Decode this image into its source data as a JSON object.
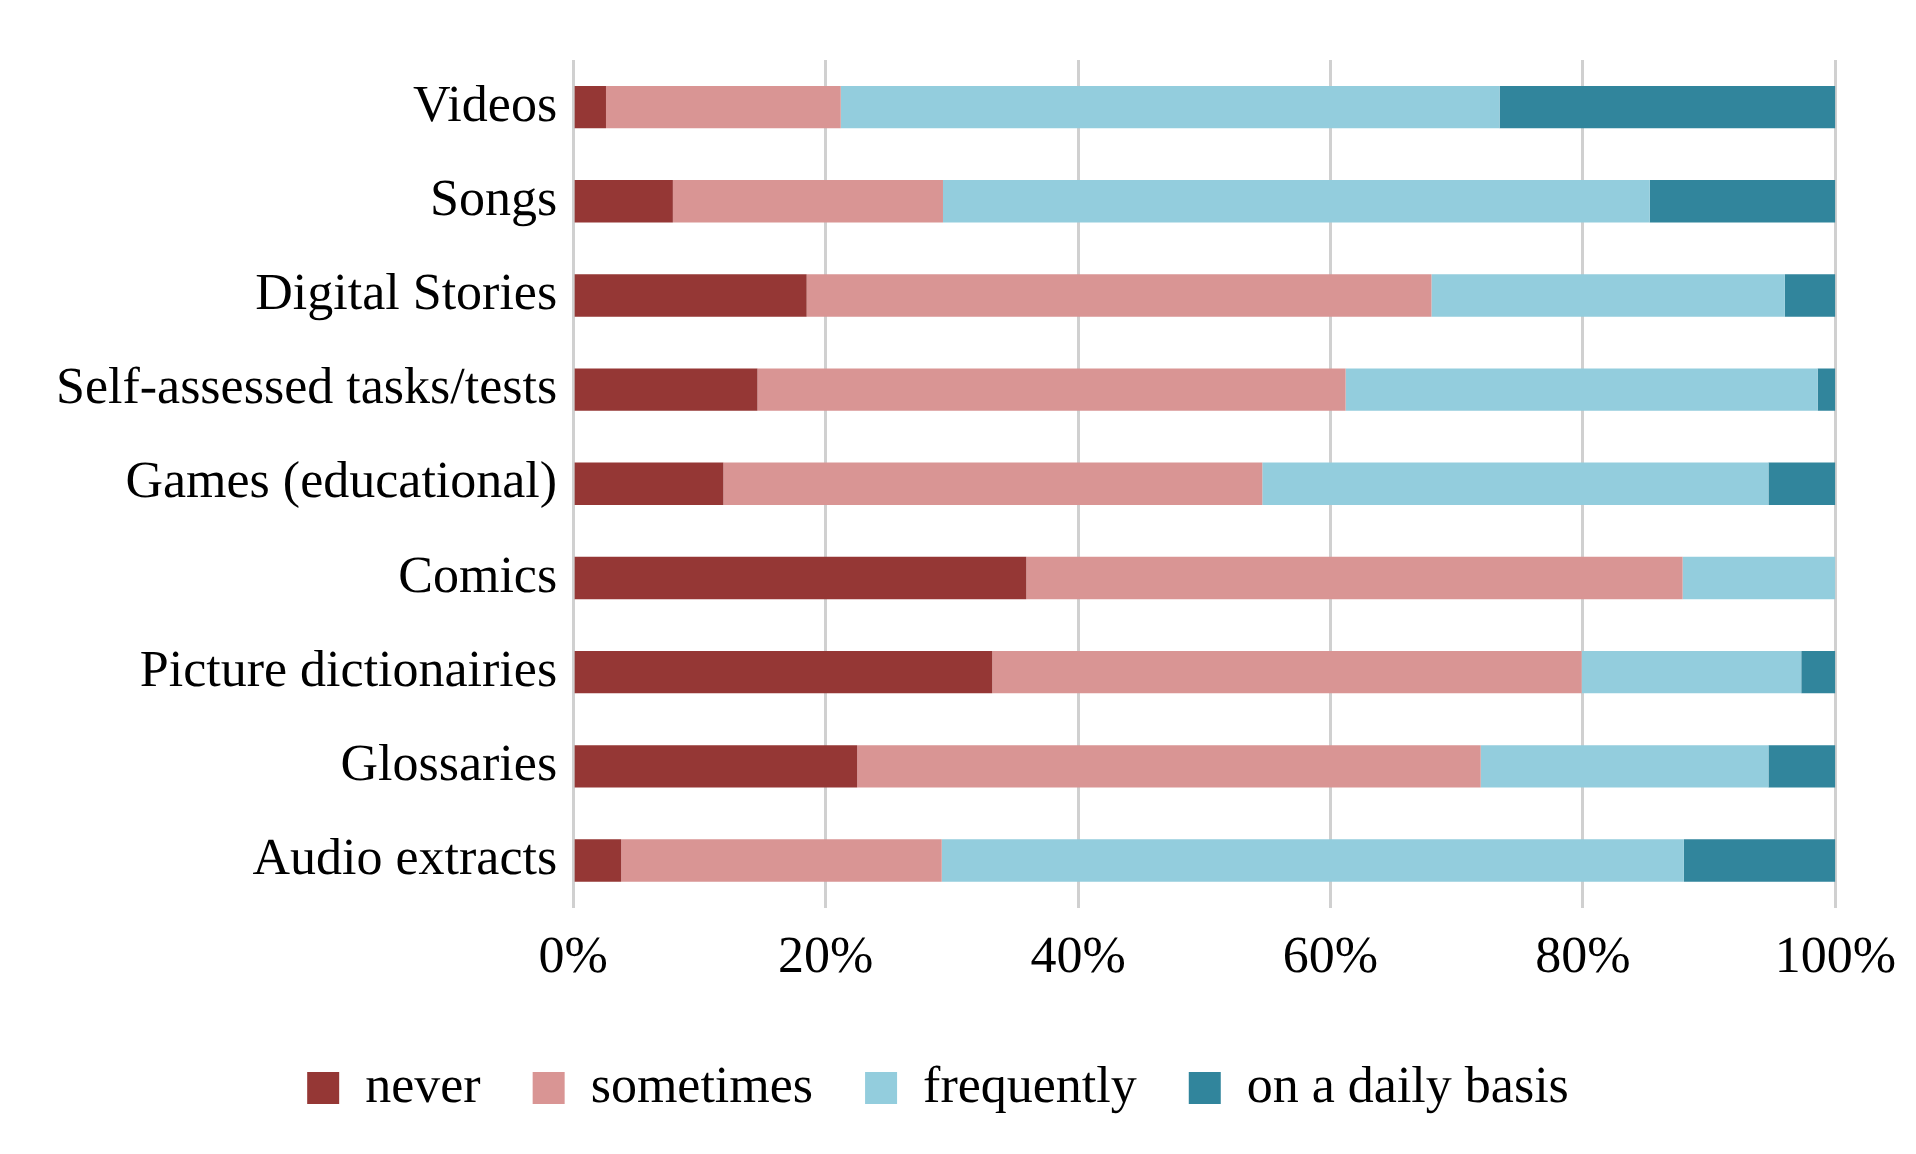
{
  "chart_data": {
    "type": "bar",
    "orientation": "horizontal",
    "stacked": true,
    "categories": [
      "Videos",
      "Songs",
      "Digital Stories",
      "Self-assessed tasks/tests",
      "Games (educational)",
      "Comics",
      "Picture dictionairies",
      "Glossaries",
      "Audio extracts"
    ],
    "series": [
      {
        "name": "never",
        "color": "#953735",
        "values": [
          2.6,
          7.9,
          18.5,
          14.6,
          11.9,
          35.9,
          33.2,
          22.5,
          3.8
        ]
      },
      {
        "name": "sometimes",
        "color": "#d99594",
        "values": [
          18.6,
          21.4,
          49.5,
          46.6,
          42.7,
          52.0,
          46.7,
          49.4,
          25.4
        ]
      },
      {
        "name": "frequently",
        "color": "#93cddd",
        "values": [
          52.2,
          56.0,
          28.0,
          37.4,
          40.1,
          12.1,
          17.4,
          22.8,
          58.8
        ]
      },
      {
        "name": "on a daily basis",
        "color": "#31859c",
        "values": [
          26.6,
          14.7,
          4.0,
          1.4,
          5.3,
          0,
          2.7,
          5.3,
          12.0
        ]
      }
    ],
    "xlim": [
      0,
      100
    ],
    "xticks": [
      {
        "value": 0,
        "label": "0%"
      },
      {
        "value": 20,
        "label": "20%"
      },
      {
        "value": 40,
        "label": "40%"
      },
      {
        "value": 60,
        "label": "60%"
      },
      {
        "value": 80,
        "label": "80%"
      },
      {
        "value": 100,
        "label": "100%"
      }
    ],
    "grid": "x",
    "legend": "bottom"
  }
}
